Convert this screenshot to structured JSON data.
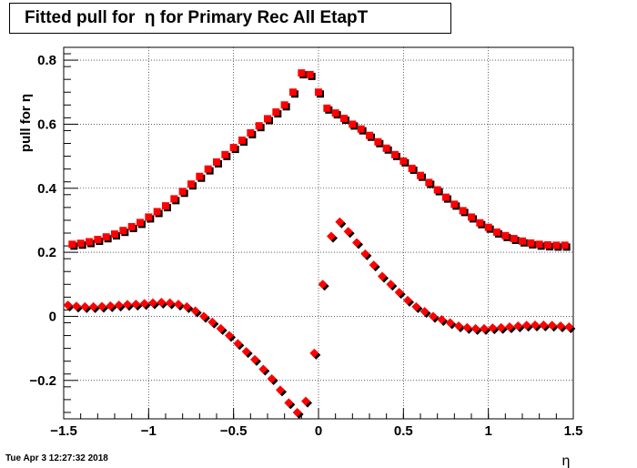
{
  "title": "Fitted pull for  η for Primary Rec All EtapT",
  "timestamp": "Tue Apr  3 12:27:32 2018",
  "chart_data": {
    "type": "scatter",
    "title": "Fitted pull for  η for Primary Rec All EtapT",
    "xlabel": "η",
    "ylabel": "pull for  η",
    "xlim": [
      -1.5,
      1.5
    ],
    "ylim": [
      -0.32,
      0.84
    ],
    "xticks": [
      -1.5,
      -1,
      -0.5,
      0,
      0.5,
      1,
      1.5
    ],
    "xtick_labels": [
      "−1.5",
      "−1",
      "−0.5",
      "0",
      "0.5",
      "1",
      "1.5"
    ],
    "yticks": [
      -0.2,
      0,
      0.2,
      0.4,
      0.6,
      0.8
    ],
    "ytick_labels": [
      "−0.2",
      "0",
      "0.2",
      "0.4",
      "0.6",
      "0.8"
    ],
    "grid": true,
    "colors": {
      "reference": "#000000",
      "current": "#ff0000"
    },
    "series": [
      {
        "marker": "square",
        "x": [
          -1.45,
          -1.4,
          -1.35,
          -1.3,
          -1.25,
          -1.2,
          -1.15,
          -1.1,
          -1.05,
          -1.0,
          -0.95,
          -0.9,
          -0.85,
          -0.8,
          -0.75,
          -0.7,
          -0.65,
          -0.6,
          -0.55,
          -0.5,
          -0.45,
          -0.4,
          -0.35,
          -0.3,
          -0.25,
          -0.2,
          -0.15,
          -0.1,
          -0.05,
          0.0,
          0.05,
          0.1,
          0.15,
          0.2,
          0.25,
          0.3,
          0.35,
          0.4,
          0.45,
          0.5,
          0.55,
          0.6,
          0.65,
          0.7,
          0.75,
          0.8,
          0.85,
          0.9,
          0.95,
          1.0,
          1.05,
          1.1,
          1.15,
          1.2,
          1.25,
          1.3,
          1.35,
          1.4,
          1.45
        ],
        "y": [
          0.225,
          0.228,
          0.233,
          0.24,
          0.248,
          0.257,
          0.268,
          0.28,
          0.293,
          0.31,
          0.327,
          0.345,
          0.367,
          0.39,
          0.413,
          0.437,
          0.46,
          0.482,
          0.505,
          0.527,
          0.55,
          0.573,
          0.595,
          0.617,
          0.638,
          0.66,
          0.7,
          0.76,
          0.755,
          0.7,
          0.65,
          0.635,
          0.618,
          0.6,
          0.585,
          0.565,
          0.545,
          0.525,
          0.505,
          0.485,
          0.462,
          0.44,
          0.418,
          0.395,
          0.372,
          0.35,
          0.33,
          0.31,
          0.292,
          0.278,
          0.263,
          0.252,
          0.243,
          0.235,
          0.229,
          0.225,
          0.223,
          0.222,
          0.222
        ]
      },
      {
        "marker": "diamond",
        "x": [
          -1.475,
          -1.425,
          -1.375,
          -1.325,
          -1.275,
          -1.225,
          -1.175,
          -1.125,
          -1.075,
          -1.025,
          -0.975,
          -0.925,
          -0.875,
          -0.825,
          -0.775,
          -0.725,
          -0.675,
          -0.625,
          -0.575,
          -0.525,
          -0.475,
          -0.425,
          -0.375,
          -0.325,
          -0.275,
          -0.225,
          -0.175,
          -0.125,
          -0.075,
          -0.025,
          0.025,
          0.075,
          0.125,
          0.175,
          0.225,
          0.275,
          0.325,
          0.375,
          0.425,
          0.475,
          0.525,
          0.575,
          0.625,
          0.675,
          0.725,
          0.775,
          0.825,
          0.875,
          0.925,
          0.975,
          1.025,
          1.075,
          1.125,
          1.175,
          1.225,
          1.275,
          1.325,
          1.375,
          1.425,
          1.475
        ],
        "y": [
          0.035,
          0.032,
          0.03,
          0.03,
          0.031,
          0.033,
          0.035,
          0.037,
          0.038,
          0.04,
          0.042,
          0.044,
          0.042,
          0.038,
          0.03,
          0.017,
          0.0,
          -0.018,
          -0.038,
          -0.06,
          -0.085,
          -0.11,
          -0.135,
          -0.165,
          -0.195,
          -0.23,
          -0.27,
          -0.3,
          -0.265,
          -0.115,
          0.1,
          0.25,
          0.295,
          0.265,
          0.23,
          0.195,
          0.16,
          0.125,
          0.1,
          0.075,
          0.05,
          0.03,
          0.015,
          0.0,
          -0.01,
          -0.02,
          -0.03,
          -0.035,
          -0.038,
          -0.038,
          -0.036,
          -0.035,
          -0.033,
          -0.03,
          -0.028,
          -0.027,
          -0.027,
          -0.028,
          -0.03,
          -0.033
        ]
      }
    ]
  }
}
